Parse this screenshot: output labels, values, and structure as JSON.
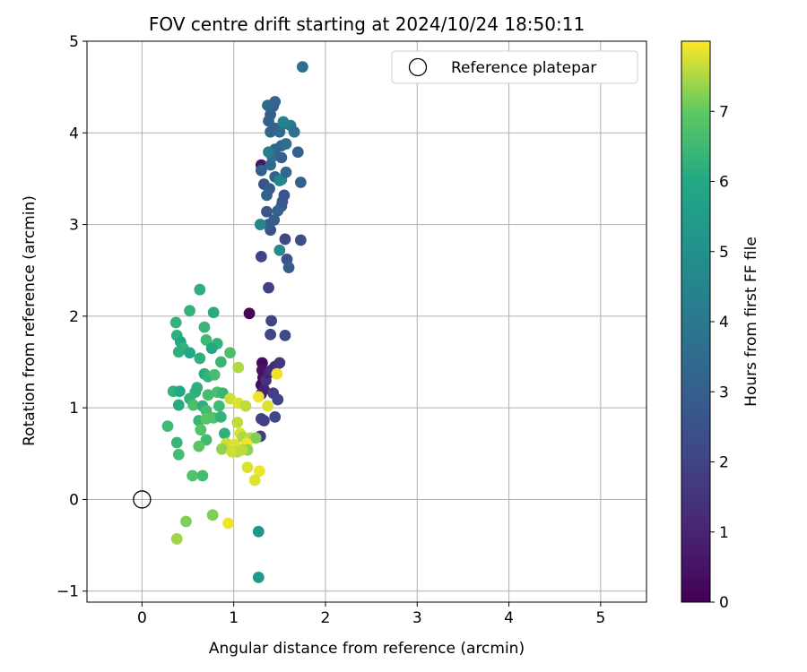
{
  "chart_data": {
    "type": "scatter",
    "title": "FOV centre drift starting at 2024/10/24 18:50:11",
    "xlabel": "Angular distance from reference (arcmin)",
    "ylabel": "Rotation from reference (arcmin)",
    "xlim": [
      -0.6,
      5.5
    ],
    "ylim": [
      -1.12,
      5.0
    ],
    "xticks": [
      0,
      1,
      2,
      3,
      4,
      5
    ],
    "yticks": [
      -1,
      0,
      1,
      2,
      3,
      4,
      5
    ],
    "grid": true,
    "legend": {
      "position": "top-right",
      "entries": [
        "Reference platepar"
      ]
    },
    "reference_point": {
      "x": 0,
      "y": 0,
      "marker": "open-circle",
      "color": "#000000"
    },
    "colorbar": {
      "label": "Hours from first FF file",
      "colormap": "viridis",
      "range": [
        0,
        8
      ],
      "ticks": [
        0,
        1,
        2,
        3,
        4,
        5,
        6,
        7
      ]
    },
    "series": [
      {
        "color_by": "hours",
        "points": [
          {
            "x": 1.17,
            "y": 2.03,
            "c": 0.1
          },
          {
            "x": 1.3,
            "y": 3.65,
            "c": 0.6
          },
          {
            "x": 1.31,
            "y": 1.49,
            "c": 0.3
          },
          {
            "x": 1.31,
            "y": 1.41,
            "c": 0.5
          },
          {
            "x": 1.32,
            "y": 1.33,
            "c": 0.4
          },
          {
            "x": 1.3,
            "y": 1.25,
            "c": 0.2
          },
          {
            "x": 1.3,
            "y": 1.15,
            "c": 0.7
          },
          {
            "x": 1.33,
            "y": 1.2,
            "c": 0.9
          },
          {
            "x": 1.35,
            "y": 1.3,
            "c": 1.4
          },
          {
            "x": 1.38,
            "y": 1.38,
            "c": 1.0
          },
          {
            "x": 1.41,
            "y": 1.41,
            "c": 1.3
          },
          {
            "x": 1.45,
            "y": 1.45,
            "c": 1.2
          },
          {
            "x": 1.5,
            "y": 1.49,
            "c": 1.5
          },
          {
            "x": 1.43,
            "y": 1.16,
            "c": 1.8
          },
          {
            "x": 1.48,
            "y": 1.09,
            "c": 2.0
          },
          {
            "x": 1.45,
            "y": 0.9,
            "c": 2.1
          },
          {
            "x": 1.3,
            "y": 0.88,
            "c": 2.0
          },
          {
            "x": 1.33,
            "y": 0.86,
            "c": 1.8
          },
          {
            "x": 1.29,
            "y": 0.69,
            "c": 1.7
          },
          {
            "x": 1.38,
            "y": 2.31,
            "c": 1.9
          },
          {
            "x": 1.41,
            "y": 1.95,
            "c": 2.0
          },
          {
            "x": 1.4,
            "y": 1.8,
            "c": 2.1
          },
          {
            "x": 1.56,
            "y": 1.79,
            "c": 2.2
          },
          {
            "x": 1.3,
            "y": 2.65,
            "c": 2.0
          },
          {
            "x": 1.56,
            "y": 2.84,
            "c": 2.2
          },
          {
            "x": 1.58,
            "y": 2.62,
            "c": 2.6
          },
          {
            "x": 1.6,
            "y": 2.53,
            "c": 2.9
          },
          {
            "x": 1.73,
            "y": 2.83,
            "c": 2.4
          },
          {
            "x": 1.4,
            "y": 2.94,
            "c": 2.5
          },
          {
            "x": 1.36,
            "y": 3.14,
            "c": 2.7
          },
          {
            "x": 1.38,
            "y": 3.0,
            "c": 2.9
          },
          {
            "x": 1.44,
            "y": 3.05,
            "c": 2.9
          },
          {
            "x": 1.48,
            "y": 3.15,
            "c": 3.1
          },
          {
            "x": 1.52,
            "y": 3.2,
            "c": 3.0
          },
          {
            "x": 1.53,
            "y": 3.25,
            "c": 2.8
          },
          {
            "x": 1.55,
            "y": 3.32,
            "c": 2.5
          },
          {
            "x": 1.33,
            "y": 3.44,
            "c": 2.6
          },
          {
            "x": 1.39,
            "y": 3.39,
            "c": 2.9
          },
          {
            "x": 1.36,
            "y": 3.32,
            "c": 3.1
          },
          {
            "x": 1.3,
            "y": 3.59,
            "c": 3.0
          },
          {
            "x": 1.45,
            "y": 3.52,
            "c": 3.2
          },
          {
            "x": 1.5,
            "y": 3.48,
            "c": 4.3
          },
          {
            "x": 1.52,
            "y": 3.49,
            "c": 4.6
          },
          {
            "x": 1.57,
            "y": 3.57,
            "c": 3.3
          },
          {
            "x": 1.73,
            "y": 3.46,
            "c": 3.1
          },
          {
            "x": 1.4,
            "y": 3.65,
            "c": 3.4
          },
          {
            "x": 1.42,
            "y": 3.74,
            "c": 3.5
          },
          {
            "x": 1.45,
            "y": 3.82,
            "c": 3.2
          },
          {
            "x": 1.52,
            "y": 3.73,
            "c": 3.0
          },
          {
            "x": 1.52,
            "y": 3.86,
            "c": 3.3
          },
          {
            "x": 1.57,
            "y": 3.88,
            "c": 3.6
          },
          {
            "x": 1.7,
            "y": 3.79,
            "c": 3.1
          },
          {
            "x": 1.38,
            "y": 3.79,
            "c": 4.2
          },
          {
            "x": 1.4,
            "y": 4.01,
            "c": 3.3
          },
          {
            "x": 1.45,
            "y": 4.05,
            "c": 3.1
          },
          {
            "x": 1.5,
            "y": 4.01,
            "c": 3.4
          },
          {
            "x": 1.55,
            "y": 4.1,
            "c": 3.8
          },
          {
            "x": 1.62,
            "y": 4.08,
            "c": 4.1
          },
          {
            "x": 1.66,
            "y": 4.01,
            "c": 3.6
          },
          {
            "x": 1.38,
            "y": 4.13,
            "c": 3.2
          },
          {
            "x": 1.4,
            "y": 4.2,
            "c": 3.0
          },
          {
            "x": 1.43,
            "y": 4.29,
            "c": 3.1
          },
          {
            "x": 1.37,
            "y": 4.3,
            "c": 3.4
          },
          {
            "x": 1.45,
            "y": 4.34,
            "c": 3.2
          },
          {
            "x": 1.54,
            "y": 4.12,
            "c": 4.4
          },
          {
            "x": 1.75,
            "y": 4.72,
            "c": 3.6
          },
          {
            "x": 1.29,
            "y": 3.0,
            "c": 4.6
          },
          {
            "x": 1.5,
            "y": 2.72,
            "c": 4.7
          },
          {
            "x": 1.27,
            "y": -0.35,
            "c": 5.2
          },
          {
            "x": 1.27,
            "y": -0.85,
            "c": 5.3
          },
          {
            "x": 0.63,
            "y": 2.29,
            "c": 6.2
          },
          {
            "x": 0.37,
            "y": 1.93,
            "c": 6.3
          },
          {
            "x": 0.52,
            "y": 2.06,
            "c": 6.3
          },
          {
            "x": 0.78,
            "y": 2.04,
            "c": 6.1
          },
          {
            "x": 0.68,
            "y": 1.88,
            "c": 6.4
          },
          {
            "x": 0.38,
            "y": 1.79,
            "c": 6.2
          },
          {
            "x": 0.42,
            "y": 1.72,
            "c": 6.0
          },
          {
            "x": 0.45,
            "y": 1.65,
            "c": 6.3
          },
          {
            "x": 0.4,
            "y": 1.61,
            "c": 6.2
          },
          {
            "x": 0.52,
            "y": 1.6,
            "c": 6.0
          },
          {
            "x": 0.7,
            "y": 1.74,
            "c": 6.5
          },
          {
            "x": 0.82,
            "y": 1.7,
            "c": 6.3
          },
          {
            "x": 0.76,
            "y": 1.65,
            "c": 6.0
          },
          {
            "x": 0.63,
            "y": 1.54,
            "c": 6.2
          },
          {
            "x": 0.86,
            "y": 1.5,
            "c": 6.4
          },
          {
            "x": 0.96,
            "y": 1.6,
            "c": 6.7
          },
          {
            "x": 0.68,
            "y": 1.37,
            "c": 6.1
          },
          {
            "x": 0.72,
            "y": 1.34,
            "c": 6.3
          },
          {
            "x": 0.79,
            "y": 1.36,
            "c": 6.6
          },
          {
            "x": 0.6,
            "y": 1.22,
            "c": 6.2
          },
          {
            "x": 0.34,
            "y": 1.18,
            "c": 6.3
          },
          {
            "x": 0.41,
            "y": 1.18,
            "c": 6.0
          },
          {
            "x": 0.58,
            "y": 1.17,
            "c": 6.2
          },
          {
            "x": 0.72,
            "y": 1.14,
            "c": 6.6
          },
          {
            "x": 0.82,
            "y": 1.17,
            "c": 6.7
          },
          {
            "x": 0.88,
            "y": 1.16,
            "c": 6.4
          },
          {
            "x": 0.4,
            "y": 1.03,
            "c": 6.1
          },
          {
            "x": 0.52,
            "y": 1.1,
            "c": 6.3
          },
          {
            "x": 0.56,
            "y": 1.03,
            "c": 6.7
          },
          {
            "x": 0.66,
            "y": 1.02,
            "c": 6.2
          },
          {
            "x": 0.7,
            "y": 0.97,
            "c": 6.6
          },
          {
            "x": 0.84,
            "y": 1.02,
            "c": 6.5
          },
          {
            "x": 0.62,
            "y": 0.86,
            "c": 6.4
          },
          {
            "x": 0.7,
            "y": 0.88,
            "c": 6.9
          },
          {
            "x": 0.78,
            "y": 0.89,
            "c": 6.8
          },
          {
            "x": 0.86,
            "y": 0.9,
            "c": 6.3
          },
          {
            "x": 0.28,
            "y": 0.8,
            "c": 6.5
          },
          {
            "x": 0.64,
            "y": 0.76,
            "c": 6.8
          },
          {
            "x": 0.9,
            "y": 0.72,
            "c": 6.2
          },
          {
            "x": 0.38,
            "y": 0.62,
            "c": 6.4
          },
          {
            "x": 0.7,
            "y": 0.65,
            "c": 6.5
          },
          {
            "x": 0.62,
            "y": 0.58,
            "c": 6.9
          },
          {
            "x": 0.4,
            "y": 0.49,
            "c": 6.6
          },
          {
            "x": 0.55,
            "y": 0.26,
            "c": 6.8
          },
          {
            "x": 0.66,
            "y": 0.26,
            "c": 6.6
          },
          {
            "x": 0.48,
            "y": -0.24,
            "c": 7.2
          },
          {
            "x": 0.38,
            "y": -0.43,
            "c": 7.4
          },
          {
            "x": 0.77,
            "y": -0.17,
            "c": 7.2
          },
          {
            "x": 0.94,
            "y": -0.26,
            "c": 7.9
          },
          {
            "x": 1.05,
            "y": 1.44,
            "c": 7.5
          },
          {
            "x": 0.96,
            "y": 1.1,
            "c": 7.7
          },
          {
            "x": 1.05,
            "y": 1.05,
            "c": 7.8
          },
          {
            "x": 1.13,
            "y": 1.02,
            "c": 7.6
          },
          {
            "x": 1.27,
            "y": 1.12,
            "c": 7.9
          },
          {
            "x": 1.37,
            "y": 1.02,
            "c": 7.8
          },
          {
            "x": 1.47,
            "y": 1.37,
            "c": 7.9
          },
          {
            "x": 1.04,
            "y": 0.84,
            "c": 7.6
          },
          {
            "x": 1.07,
            "y": 0.72,
            "c": 7.8
          },
          {
            "x": 1.1,
            "y": 0.68,
            "c": 7.5
          },
          {
            "x": 1.18,
            "y": 0.67,
            "c": 7.6
          },
          {
            "x": 1.24,
            "y": 0.67,
            "c": 7.2
          },
          {
            "x": 0.92,
            "y": 0.61,
            "c": 7.7
          },
          {
            "x": 1.01,
            "y": 0.6,
            "c": 7.8
          },
          {
            "x": 1.04,
            "y": 0.52,
            "c": 7.5
          },
          {
            "x": 0.87,
            "y": 0.55,
            "c": 7.3
          },
          {
            "x": 1.14,
            "y": 0.61,
            "c": 7.9
          },
          {
            "x": 1.15,
            "y": 0.54,
            "c": 7.3
          },
          {
            "x": 0.98,
            "y": 0.52,
            "c": 7.7
          },
          {
            "x": 1.09,
            "y": 0.54,
            "c": 7.6
          },
          {
            "x": 1.15,
            "y": 0.35,
            "c": 7.8
          },
          {
            "x": 1.28,
            "y": 0.31,
            "c": 7.9
          },
          {
            "x": 1.23,
            "y": 0.21,
            "c": 7.8
          }
        ]
      }
    ]
  }
}
